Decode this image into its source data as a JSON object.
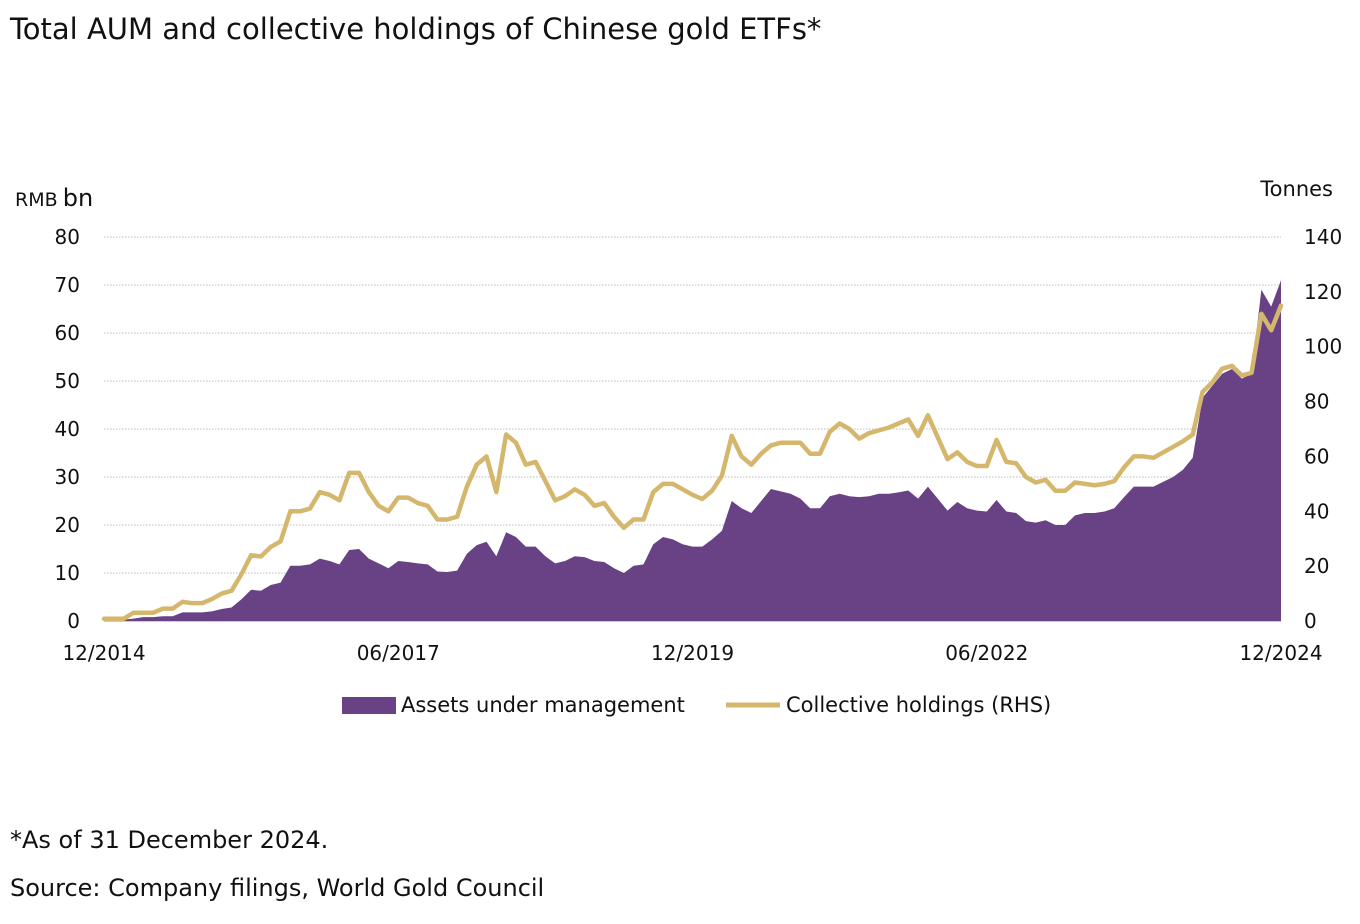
{
  "title": "Total AUM and collective holdings of Chinese gold ETFs*",
  "footnote": "*As of 31 December 2024.",
  "source": "Source: Company filings, World Gold Council",
  "colors": {
    "aum": "#694286",
    "holdings": "#d4b76c",
    "grid": "#bdbdbd",
    "text": "#111111"
  },
  "chart_data": {
    "type": "area",
    "title": "Total AUM and collective holdings of Chinese gold ETFs*",
    "left_axis": {
      "unit_prefix": "RMB",
      "unit": "bn",
      "ylim": [
        0,
        80
      ],
      "ticks": [
        "0",
        "10",
        "20",
        "30",
        "40",
        "50",
        "60",
        "70",
        "80"
      ]
    },
    "right_axis": {
      "label": "Tonnes",
      "ylim": [
        0,
        140
      ],
      "ticks": [
        "0",
        "20",
        "40",
        "60",
        "80",
        "100",
        "120",
        "140"
      ]
    },
    "x_tick_labels": [
      "12/2014",
      "06/2017",
      "12/2019",
      "06/2022",
      "12/2024"
    ],
    "x_tick_indices": [
      0,
      30,
      60,
      90,
      120
    ],
    "grid": true,
    "legend": {
      "position": "bottom-center"
    },
    "series": [
      {
        "name": "Assets under management",
        "axis": "left",
        "type": "area",
        "values": [
          0.3,
          0.3,
          0.3,
          0.5,
          0.8,
          0.8,
          1.0,
          1.0,
          1.8,
          1.8,
          1.8,
          2.0,
          2.5,
          2.8,
          4.5,
          6.5,
          6.3,
          7.5,
          8.0,
          11.5,
          11.5,
          11.8,
          13.0,
          12.5,
          11.8,
          14.8,
          15.0,
          13.0,
          12.0,
          11.0,
          12.5,
          12.3,
          12.0,
          11.8,
          10.3,
          10.2,
          10.5,
          14.0,
          15.8,
          16.5,
          13.5,
          18.5,
          17.5,
          15.5,
          15.5,
          13.5,
          12.0,
          12.5,
          13.5,
          13.3,
          12.5,
          12.3,
          11.0,
          10.0,
          11.5,
          11.8,
          16.0,
          17.5,
          17.0,
          16.0,
          15.5,
          15.5,
          17.0,
          18.8,
          25.0,
          23.5,
          22.5,
          25.0,
          27.5,
          27.0,
          26.5,
          25.5,
          23.5,
          23.5,
          26.0,
          26.5,
          26.0,
          25.8,
          26.0,
          26.5,
          26.5,
          26.8,
          27.2,
          25.5,
          28.0,
          25.5,
          23.0,
          24.8,
          23.5,
          23.0,
          22.8,
          25.2,
          22.8,
          22.5,
          20.8,
          20.5,
          21.0,
          20.0,
          20.0,
          22.0,
          22.5,
          22.5,
          22.8,
          23.5,
          25.8,
          28.0,
          28.0,
          28.0,
          29.0,
          30.0,
          31.5,
          34.0,
          46.5,
          49.0,
          51.5,
          52.5,
          50.5,
          51.5,
          69.0,
          65.5,
          71.0
        ]
      },
      {
        "name": "Collective holdings (RHS)",
        "axis": "right",
        "type": "line",
        "values": [
          0.8,
          0.8,
          0.8,
          3.0,
          3.0,
          3.0,
          4.5,
          4.5,
          7.0,
          6.5,
          6.5,
          8.0,
          10.0,
          11.0,
          17.0,
          24.0,
          23.5,
          27.0,
          29.0,
          40.0,
          40.0,
          41.0,
          47.0,
          46.0,
          44.0,
          54.0,
          54.0,
          47.0,
          42.0,
          40.0,
          45.0,
          45.0,
          43.0,
          42.0,
          37.0,
          37.0,
          38.0,
          49.0,
          57.0,
          60.0,
          47.0,
          68.0,
          65.0,
          57.0,
          58.0,
          51.0,
          44.0,
          45.5,
          48.0,
          46.0,
          42.0,
          43.0,
          38.0,
          34.0,
          37.0,
          37.0,
          47.0,
          50.0,
          50.0,
          48.0,
          46.0,
          44.5,
          47.5,
          53.0,
          67.5,
          60.0,
          57.0,
          61.0,
          64.0,
          65.0,
          65.0,
          65.0,
          61.0,
          61.0,
          69.0,
          72.0,
          70.0,
          66.5,
          68.5,
          69.5,
          70.5,
          72.0,
          73.5,
          67.5,
          75.0,
          67.0,
          59.0,
          61.5,
          58.0,
          56.5,
          56.5,
          66.0,
          58.0,
          57.5,
          52.5,
          50.5,
          51.5,
          47.5,
          47.5,
          50.5,
          50.0,
          49.5,
          50.0,
          51.0,
          56.0,
          60.0,
          60.0,
          59.5,
          61.5,
          63.5,
          65.5,
          68.0,
          83.5,
          87.0,
          92.0,
          93.0,
          89.5,
          90.5,
          112.0,
          106.0,
          115.0
        ]
      }
    ]
  }
}
